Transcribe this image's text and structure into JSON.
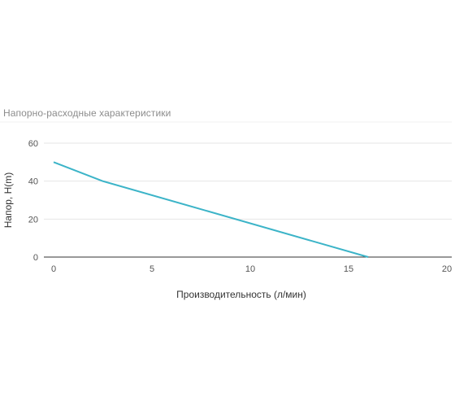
{
  "chart_data": {
    "type": "line",
    "title": "Напорно-расходные характеристики",
    "xlabel": "Производительность (л/мин)",
    "ylabel": "Напор, H(m)",
    "xlim": [
      0,
      20
    ],
    "ylim": [
      0,
      60
    ],
    "x_ticks": [
      0,
      5,
      10,
      15,
      20
    ],
    "y_ticks": [
      0,
      20,
      40,
      60
    ],
    "grid": true,
    "legend": "none",
    "series": [
      {
        "color": "#3cb4c8",
        "x": [
          0,
          2.5,
          16
        ],
        "y": [
          50,
          40,
          0
        ]
      }
    ]
  }
}
